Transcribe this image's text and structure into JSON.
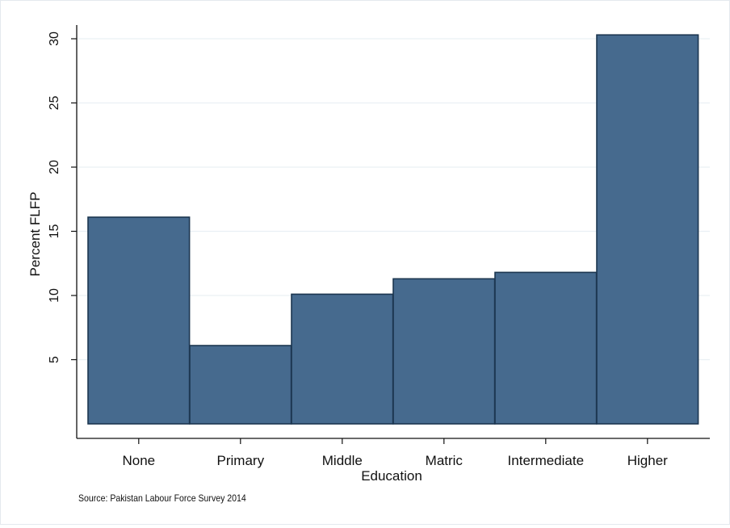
{
  "chart_data": {
    "type": "bar",
    "categories": [
      "None",
      "Primary",
      "Middle",
      "Matric",
      "Intermediate",
      "Higher"
    ],
    "values": [
      16.1,
      6.1,
      10.1,
      11.3,
      11.8,
      30.3
    ],
    "title": "",
    "xlabel": "Education",
    "ylabel": "Percent FLFP",
    "ylim": [
      0,
      31
    ],
    "yticks": [
      5,
      10,
      15,
      20,
      25,
      30
    ],
    "grid": true,
    "bar_color": "#466a8e",
    "bar_edge_color": "#1c3650",
    "grid_color": "#eaf0f4",
    "note": "Source: Pakistan Labour Force Survey 2014"
  }
}
